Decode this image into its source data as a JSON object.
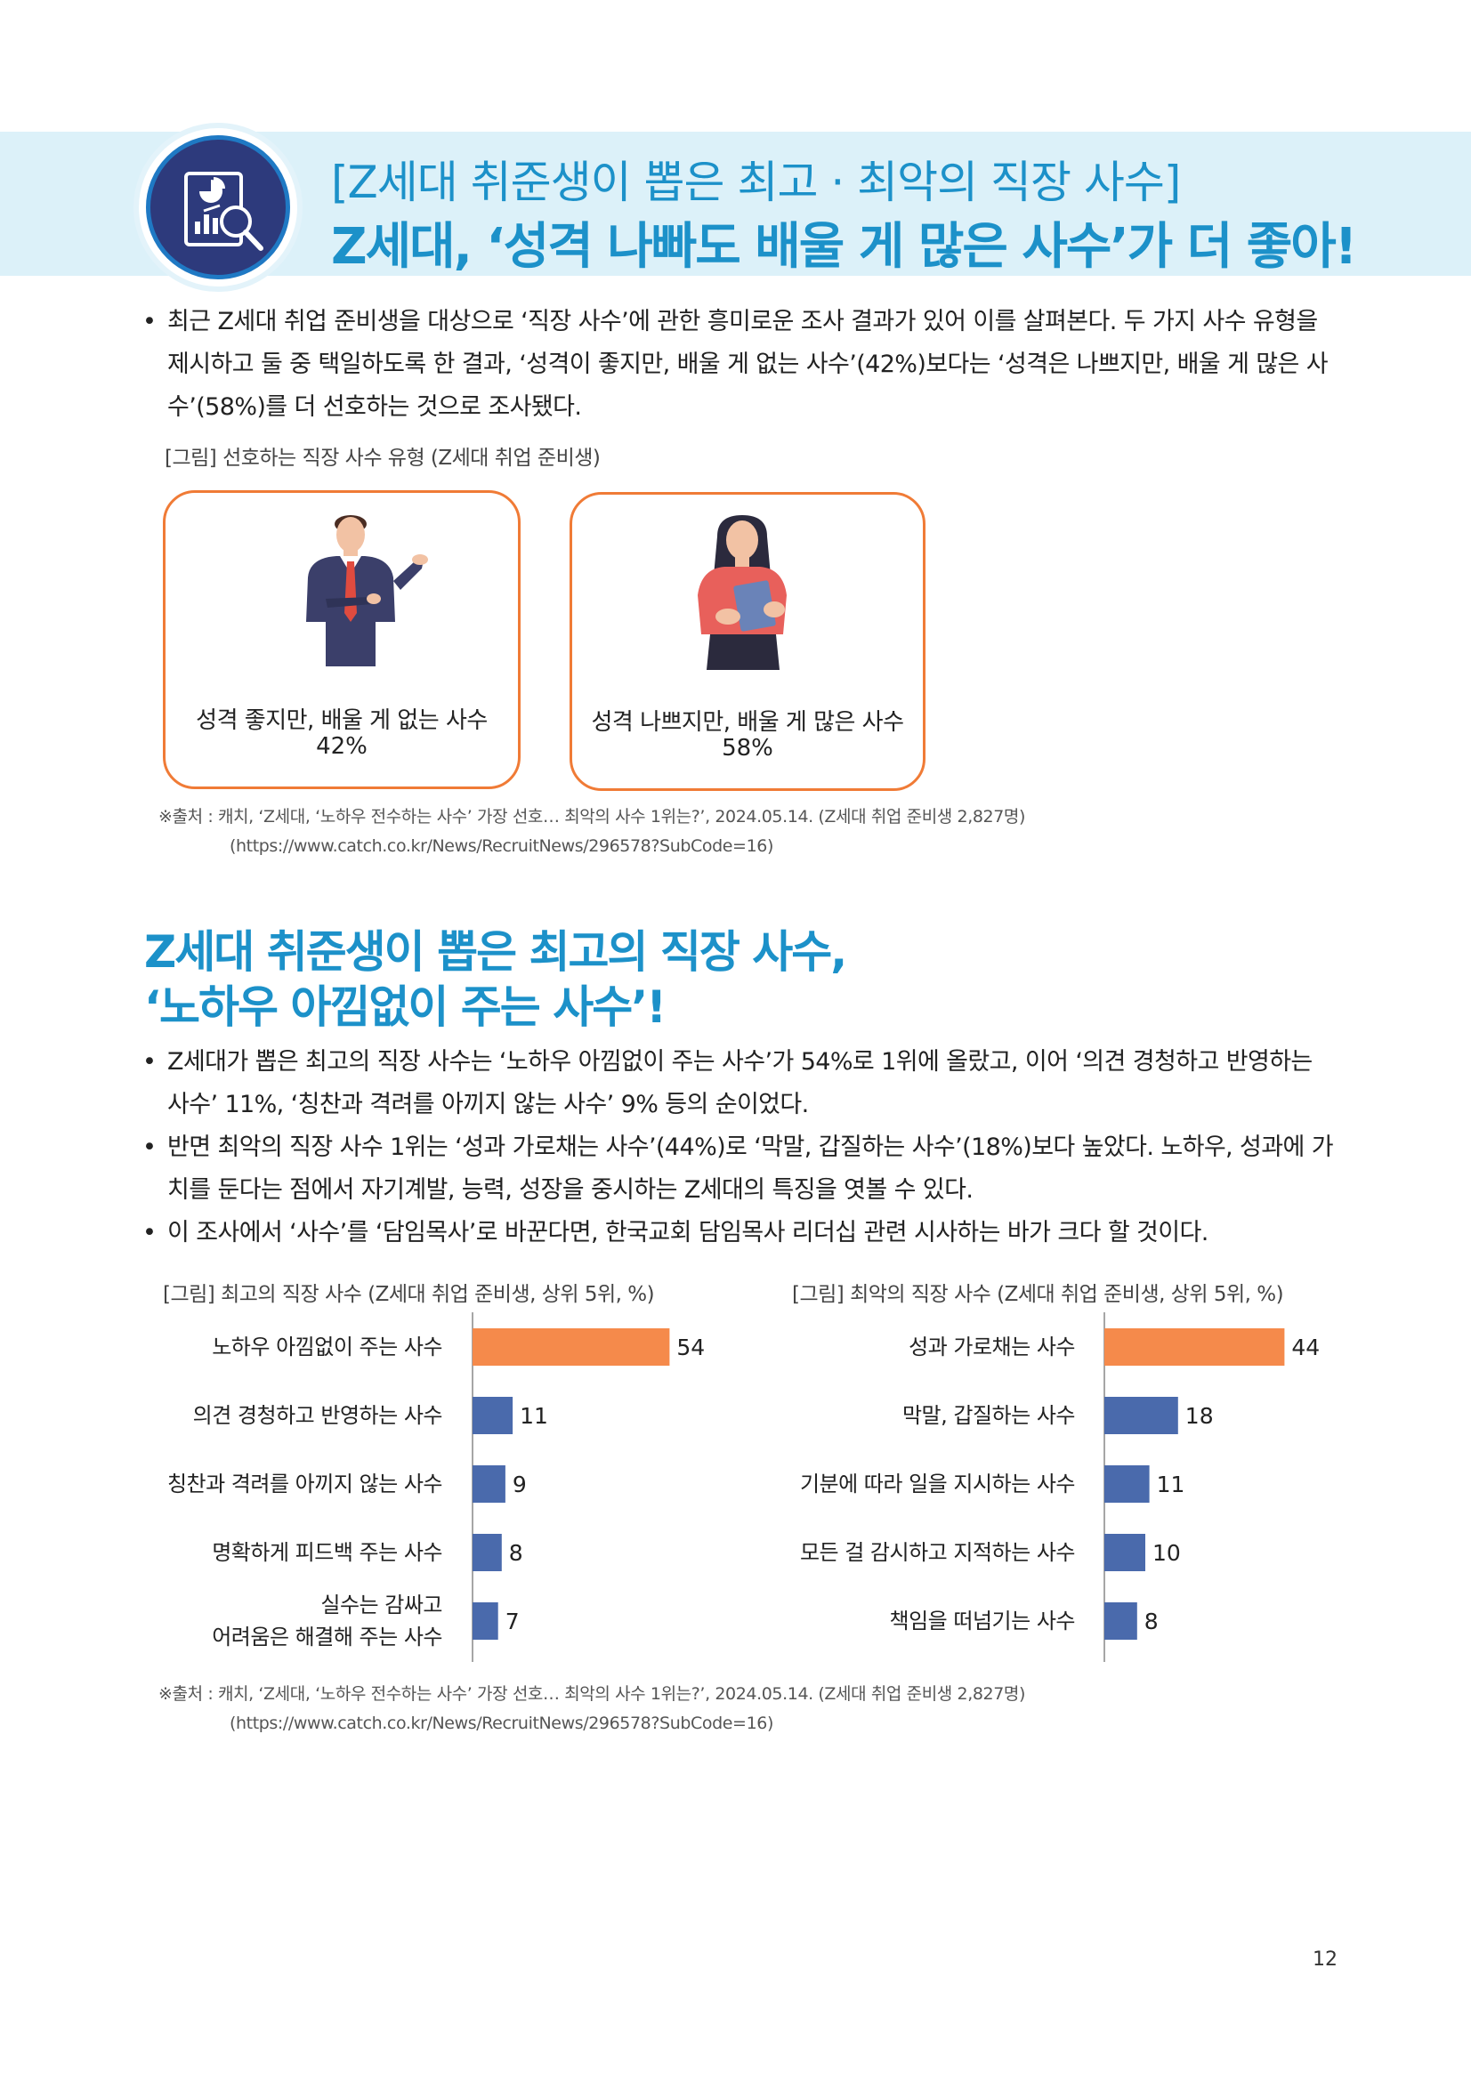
{
  "header": {
    "title_line1": "[Z세대 취준생이 뽑은 최고 · 최악의 직장 사수]",
    "title_line2": "Z세대, ‘성격 나빠도 배울 게 많은 사수’가 더 좋아!",
    "icon": "report-magnifier-icon"
  },
  "intro_bullets": [
    "최근 Z세대 취업 준비생을 대상으로 ‘직장 사수’에 관한 흥미로운 조사 결과가 있어 이를 살펴본다. 두 가지 사수 유형을 제시하고 둘 중 택일하도록 한 결과, ‘성격이 좋지만, 배울 게 없는 사수’(42%)보다는 ‘성격은 나쁘지만, 배울 게 많은 사수’(58%)를 더 선호하는 것으로 조사됐다."
  ],
  "figure1": {
    "caption": "[그림] 선호하는 직장 사수 유형 (Z세대 취업 준비생)",
    "cards": [
      {
        "label": "성격 좋지만, 배울 게 없는 사수",
        "value": "42%",
        "figure": "man-in-suit-icon"
      },
      {
        "label": "성격 나쁘지만, 배울 게 많은 사수",
        "value": "58%",
        "figure": "woman-with-book-icon"
      }
    ],
    "source_line1": "※출처 : 캐치, ‘Z세대, ‘노하우 전수하는 사수’ 가장 선호… 최악의 사수 1위는?’, 2024.05.14. (Z세대 취업 준비생 2,827명)",
    "source_line2": "(https://www.catch.co.kr/News/RecruitNews/296578?SubCode=16)"
  },
  "section2": {
    "title_line1": "Z세대 취준생이 뽑은 최고의 직장 사수,",
    "title_line2": "‘노하우 아낌없이 주는 사수’!",
    "bullets": [
      "Z세대가 뽑은 최고의 직장 사수는 ‘노하우 아낌없이 주는 사수’가 54%로 1위에 올랐고, 이어 ‘의견 경청하고 반영하는 사수’ 11%, ‘칭찬과 격려를 아끼지 않는 사수’ 9% 등의 순이었다.",
      "반면 최악의 직장 사수 1위는 ‘성과 가로채는 사수’(44%)로 ‘막말, 갑질하는 사수’(18%)보다 높았다. 노하우, 성과에 가치를 둔다는 점에서 자기계발, 능력, 성장을 중시하는 Z세대의 특징을 엿볼 수 있다.",
      "이 조사에서 ‘사수’를 ‘담임목사’로 바꾼다면, 한국교회 담임목사 리더십 관련 시사하는 바가 크다 할 것이다."
    ]
  },
  "chart_data": [
    {
      "type": "bar",
      "orientation": "horizontal",
      "title": "[그림] 최고의 직장 사수 (Z세대 취업 준비생, 상위 5위, %)",
      "categories": [
        "노하우 아낌없이 주는 사수",
        "의견 경청하고 반영하는 사수",
        "칭찬과 격려를 아끼지 않는 사수",
        "명확하게 피드백 주는 사수",
        "실수는 감싸고\n어려움은 해결해 주는 사수"
      ],
      "values": [
        54,
        11,
        9,
        8,
        7
      ],
      "highlight_color": "#f58a4b",
      "bar_color": "#4a6aac",
      "grid": false
    },
    {
      "type": "bar",
      "orientation": "horizontal",
      "title": "[그림] 최악의 직장 사수 (Z세대 취업 준비생, 상위 5위, %)",
      "categories": [
        "성과 가로채는 사수",
        "막말, 갑질하는 사수",
        "기분에 따라 일을 지시하는 사수",
        "모든 걸 감시하고 지적하는 사수",
        "책임을 떠넘기는 사수"
      ],
      "values": [
        44,
        18,
        11,
        10,
        8
      ],
      "highlight_color": "#f58a4b",
      "bar_color": "#4a6aac",
      "grid": false
    }
  ],
  "source2": {
    "line1": "※출처 : 캐치, ‘Z세대, ‘노하우 전수하는 사수’ 가장 선호… 최악의 사수 1위는?’, 2024.05.14. (Z세대 취업 준비생 2,827명)",
    "line2": "(https://www.catch.co.kr/News/RecruitNews/296578?SubCode=16)"
  },
  "page_number": "12"
}
